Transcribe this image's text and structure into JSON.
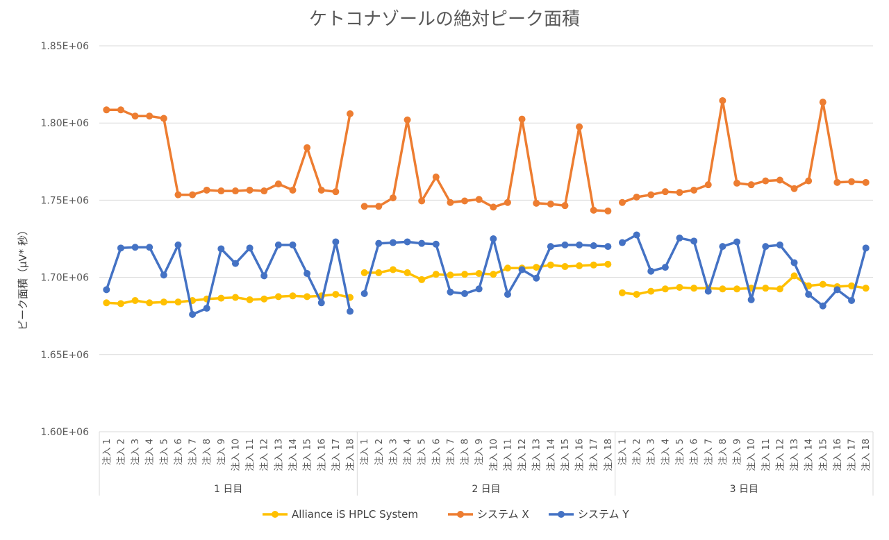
{
  "chart_data": {
    "type": "line",
    "title": "ケトコナゾールの絶対ピーク面積",
    "xlabel": "",
    "ylabel": "ピーク面積（μV* 秒）",
    "ylim": [
      1600000,
      1850000
    ],
    "yticks": [
      1600000,
      1650000,
      1700000,
      1750000,
      1800000,
      1850000
    ],
    "ytick_labels": [
      "1.60E+06",
      "1.65E+06",
      "1.70E+06",
      "1.75E+06",
      "1.80E+06",
      "1.85E+06"
    ],
    "grid": true,
    "legend_position": "bottom",
    "groups": [
      "1 日目",
      "2 日目",
      "3 日目"
    ],
    "injections": [
      "注入 1",
      "注入 2",
      "注入 3",
      "注入 4",
      "注入 5",
      "注入 6",
      "注入 7",
      "注入 8",
      "注入 9",
      "注入 10",
      "注入 11",
      "注入 12",
      "注入 13",
      "注入 14",
      "注入 15",
      "注入 16",
      "注入 17",
      "注入 18"
    ],
    "series": [
      {
        "name": "Alliance iS HPLC System",
        "color": "#FFC000",
        "values": [
          [
            1683500,
            1683000,
            1685000,
            1683500,
            1684000,
            1684000,
            1685000,
            1686000,
            1686500,
            1687000,
            1685500,
            1686000,
            1687500,
            1688000,
            1687500,
            1688000,
            1689000,
            1687000
          ],
          [
            1703000,
            1703000,
            1705000,
            1703000,
            1698500,
            1702000,
            1701500,
            1702000,
            1702500,
            1702000,
            1706000,
            1706000,
            1706500,
            1708000,
            1707000,
            1707500,
            1708000,
            1708500
          ],
          [
            1690000,
            1689000,
            1691000,
            1692500,
            1693500,
            1693000,
            1693000,
            1692500,
            1692500,
            1693000,
            1693000,
            1692500,
            1701000,
            1694500,
            1695500,
            1694000,
            1694500,
            1693000
          ]
        ]
      },
      {
        "name": "システム X",
        "color": "#ED7D31",
        "values": [
          [
            1808500,
            1808500,
            1804500,
            1804500,
            1803000,
            1753500,
            1753500,
            1756500,
            1756000,
            1756000,
            1756500,
            1756000,
            1760500,
            1756500,
            1784000,
            1756500,
            1755500,
            1806000
          ],
          [
            1746000,
            1746000,
            1751500,
            1802000,
            1749500,
            1765000,
            1748500,
            1749500,
            1750500,
            1745500,
            1748500,
            1802500,
            1748000,
            1747500,
            1746500,
            1797500,
            1743500,
            1743000
          ],
          [
            1748500,
            1752000,
            1753500,
            1755500,
            1755000,
            1756500,
            1760000,
            1814500,
            1761000,
            1760000,
            1762500,
            1763000,
            1757500,
            1762500,
            1813500,
            1761500,
            1762000,
            1761500
          ]
        ]
      },
      {
        "name": "システム Y",
        "color": "#4472C4",
        "values": [
          [
            1692000,
            1719000,
            1719500,
            1719500,
            1701500,
            1721000,
            1676000,
            1680000,
            1718500,
            1709000,
            1719000,
            1701000,
            1721000,
            1721000,
            1702500,
            1683500,
            1723000,
            1678000
          ],
          [
            1689500,
            1722000,
            1722500,
            1723000,
            1722000,
            1721500,
            1690500,
            1689500,
            1692500,
            1725000,
            1689000,
            1705000,
            1699500,
            1720000,
            1721000,
            1721000,
            1720500,
            1720000
          ],
          [
            1722500,
            1727500,
            1704000,
            1706500,
            1725500,
            1723500,
            1691000,
            1720000,
            1723000,
            1685500,
            1720000,
            1721000,
            1709500,
            1689000,
            1681500,
            1692000,
            1685000,
            1719000
          ]
        ]
      }
    ]
  }
}
